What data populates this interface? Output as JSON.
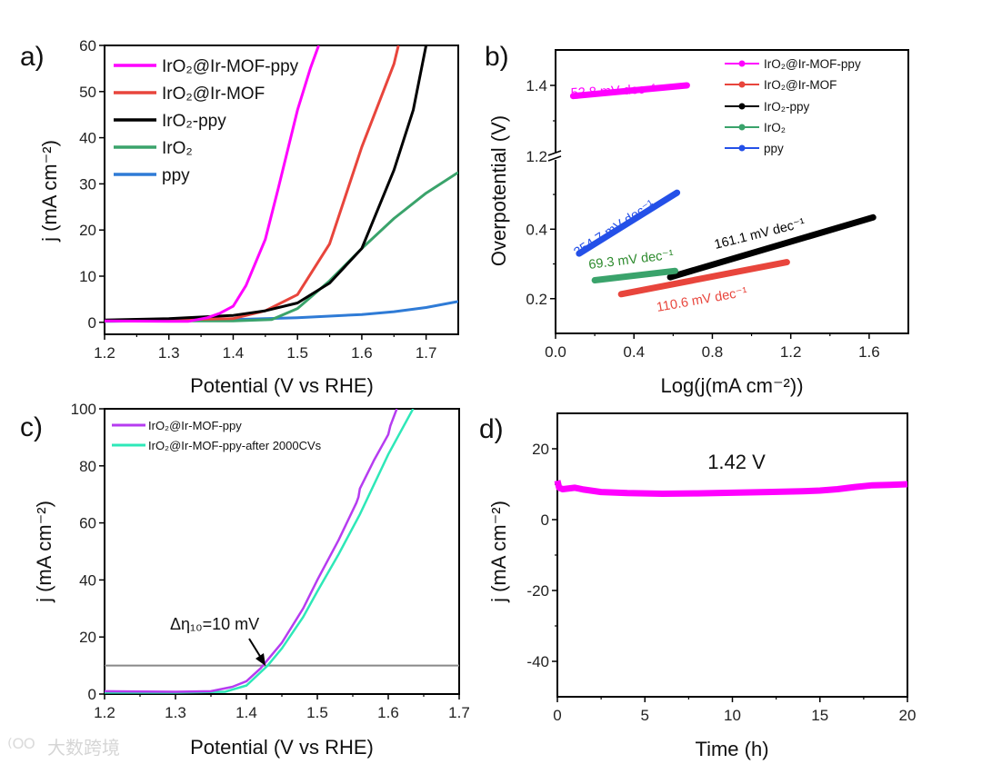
{
  "watermark": "大数跨境",
  "chart_data": [
    {
      "panel": "a)",
      "type": "line",
      "xlabel": "Potential (V vs RHE)",
      "ylabel": "j (mA cm⁻²)",
      "xlim": [
        1.2,
        1.75
      ],
      "ylim": [
        -2.6,
        60
      ],
      "xticks": [
        1.2,
        1.3,
        1.4,
        1.5,
        1.6,
        1.7
      ],
      "yticks": [
        0,
        10,
        20,
        30,
        40,
        50,
        60
      ],
      "legend_position": "top-left",
      "series": [
        {
          "name": "IrO₂@Ir-MOF-ppy",
          "color": "#ff00ff",
          "x": [
            1.2,
            1.3,
            1.33,
            1.36,
            1.38,
            1.4,
            1.42,
            1.45,
            1.47,
            1.5,
            1.52,
            1.533
          ],
          "y": [
            0.3,
            0.2,
            0.2,
            1,
            2,
            3.5,
            8,
            18,
            29,
            46,
            55,
            60
          ]
        },
        {
          "name": "IrO₂@Ir-MOF",
          "color": "#e8453c",
          "x": [
            1.2,
            1.4,
            1.45,
            1.5,
            1.55,
            1.6,
            1.65,
            1.657
          ],
          "y": [
            0.3,
            0.8,
            2.5,
            6,
            17,
            38,
            56,
            60
          ]
        },
        {
          "name": "IrO₂-ppy",
          "color": "#000000",
          "x": [
            1.2,
            1.3,
            1.4,
            1.45,
            1.5,
            1.55,
            1.6,
            1.65,
            1.68,
            1.7
          ],
          "y": [
            0.5,
            0.8,
            1.5,
            2.5,
            4.2,
            8.5,
            16,
            33,
            46,
            60
          ]
        },
        {
          "name": "IrO₂",
          "color": "#3aa36b",
          "x": [
            1.2,
            1.4,
            1.46,
            1.5,
            1.55,
            1.6,
            1.65,
            1.7,
            1.75
          ],
          "y": [
            0.3,
            0.3,
            0.6,
            3,
            9,
            16,
            22.5,
            28,
            32.5
          ]
        },
        {
          "name": "ppy",
          "color": "#2f7bd6",
          "x": [
            1.2,
            1.4,
            1.5,
            1.6,
            1.65,
            1.7,
            1.75
          ],
          "y": [
            0.2,
            0.6,
            1,
            1.7,
            2.3,
            3.2,
            4.5
          ]
        }
      ]
    },
    {
      "panel": "b)",
      "type": "line",
      "xlabel": "Log(j(mA cm⁻²))",
      "ylabel": "Overpotential (V)",
      "xlim": [
        0,
        1.8
      ],
      "ylim_lower": [
        0.1,
        0.61
      ],
      "ylim_upper": [
        1.2,
        1.5
      ],
      "axis_break": [
        0.61,
        1.2
      ],
      "xticks": [
        0.0,
        0.4,
        0.8,
        1.2,
        1.6
      ],
      "xtick_labels": [
        "0.0",
        "0.4",
        "0.8",
        "1.2",
        "1.6"
      ],
      "yticks": [
        0.2,
        0.4,
        1.2,
        1.4
      ],
      "legend_position": "top-right",
      "series": [
        {
          "name": "IrO₂@Ir-MOF-ppy",
          "color": "#ff00ff",
          "x": [
            0.09,
            0.67
          ],
          "y": [
            1.37,
            1.4
          ],
          "annotation": "52.8 mV dec⁻¹"
        },
        {
          "name": "IrO₂@Ir-MOF",
          "color": "#e8453c",
          "x": [
            0.335,
            1.18
          ],
          "y": [
            0.213,
            0.305
          ],
          "annotation": "110.6 mV dec⁻¹"
        },
        {
          "name": "IrO₂-ppy",
          "color": "#000000",
          "x": [
            0.585,
            1.62
          ],
          "y": [
            0.262,
            0.434
          ],
          "annotation": "161.1 mV dec⁻¹"
        },
        {
          "name": "IrO₂",
          "color": "#3aa36b",
          "x": [
            0.2,
            0.61
          ],
          "y": [
            0.253,
            0.28
          ],
          "annotation": "69.3 mV dec⁻¹"
        },
        {
          "name": "ppy",
          "color": "#2450e8",
          "x": [
            0.12,
            0.62
          ],
          "y": [
            0.33,
            0.505
          ],
          "annotation": "354.7 mV dec⁻¹"
        }
      ],
      "annotation_colors": [
        "#ff00ff",
        "#e8453c",
        "#000000",
        "#2e8b2e",
        "#2450e8"
      ]
    },
    {
      "panel": "c)",
      "type": "line",
      "xlabel": "Potential (V vs RHE)",
      "ylabel": "j (mA cm⁻²)",
      "xlim": [
        1.2,
        1.7
      ],
      "ylim": [
        0,
        100
      ],
      "xticks": [
        1.2,
        1.3,
        1.4,
        1.5,
        1.6,
        1.7
      ],
      "yticks": [
        0,
        20,
        40,
        60,
        80,
        100
      ],
      "legend_position": "top-left",
      "reference_line_y": 10,
      "annotation": "Δη₁₀=10 mV",
      "series": [
        {
          "name": "IrO₂@Ir-MOF-ppy",
          "color": "#b63cf0",
          "x": [
            1.2,
            1.3,
            1.35,
            1.38,
            1.4,
            1.42,
            1.45,
            1.48,
            1.5,
            1.53,
            1.555,
            1.558,
            1.56,
            1.58,
            1.6,
            1.603,
            1.612
          ],
          "y": [
            1,
            0.8,
            1,
            2.5,
            4.5,
            9,
            18,
            30,
            40,
            54,
            67,
            69,
            72,
            82,
            91,
            94,
            100
          ]
        },
        {
          "name": "IrO₂@Ir-MOF-ppy-after 2000CVs",
          "color": "#2ee8b8",
          "x": [
            1.2,
            1.3,
            1.37,
            1.4,
            1.43,
            1.45,
            1.48,
            1.5,
            1.53,
            1.56,
            1.6,
            1.635
          ],
          "y": [
            0.5,
            0.5,
            0.8,
            3,
            10,
            16,
            27,
            36,
            49,
            63,
            84,
            100
          ]
        }
      ]
    },
    {
      "panel": "d)",
      "type": "line",
      "xlabel": "Time (h)",
      "ylabel": "j (mA cm⁻²)",
      "xlim": [
        0,
        20
      ],
      "ylim": [
        -50,
        30
      ],
      "xticks": [
        0,
        5,
        10,
        15,
        20
      ],
      "yticks": [
        -40,
        -20,
        0,
        20
      ],
      "annotation": "1.42 V",
      "series": [
        {
          "name": "1.42 V",
          "color": "#ff00ff",
          "x": [
            0,
            0.1,
            0.3,
            1,
            1.5,
            2.5,
            4,
            6,
            8,
            10,
            12,
            14,
            15,
            16,
            17,
            18,
            19,
            20
          ],
          "y": [
            11,
            9,
            8.6,
            9,
            8.5,
            7.8,
            7.5,
            7.3,
            7.4,
            7.6,
            7.8,
            8,
            8.2,
            8.6,
            9.2,
            9.7,
            9.8,
            10
          ]
        }
      ]
    }
  ]
}
